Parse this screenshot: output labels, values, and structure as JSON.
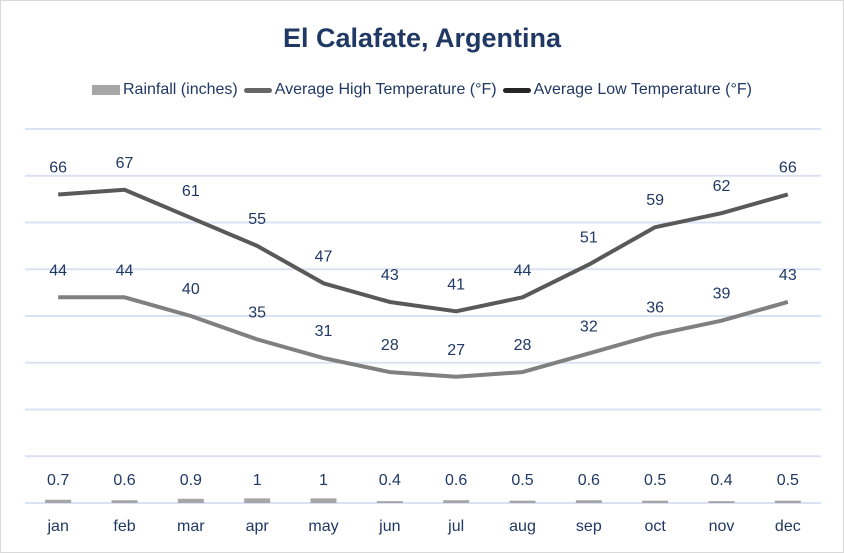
{
  "chart_data": {
    "type": "line",
    "title": "El Calafate, Argentina",
    "categories": [
      "jan",
      "feb",
      "mar",
      "apr",
      "may",
      "jun",
      "jul",
      "aug",
      "sep",
      "oct",
      "nov",
      "dec"
    ],
    "series": [
      {
        "name": "Rainfall (inches)",
        "kind": "bar",
        "values": [
          0.7,
          0.6,
          0.9,
          1,
          1,
          0.4,
          0.6,
          0.5,
          0.6,
          0.5,
          0.4,
          0.5
        ],
        "color": "#a6a6a6",
        "legend_color": "#a6a6a6"
      },
      {
        "name": "Average High Temperature (°F)",
        "kind": "line",
        "values": [
          66,
          67,
          61,
          55,
          47,
          43,
          41,
          44,
          51,
          59,
          62,
          66
        ],
        "color": "#595959",
        "legend_color": "#666666"
      },
      {
        "name": "Average Low Temperature (°F)",
        "kind": "line",
        "values": [
          44,
          44,
          40,
          35,
          31,
          28,
          27,
          28,
          32,
          36,
          39,
          43
        ],
        "color": "#808080",
        "legend_color": "#262626"
      }
    ],
    "ylim": [
      0,
      80
    ],
    "grid": true,
    "legend_position": "top",
    "xlabel": "",
    "ylabel": ""
  }
}
